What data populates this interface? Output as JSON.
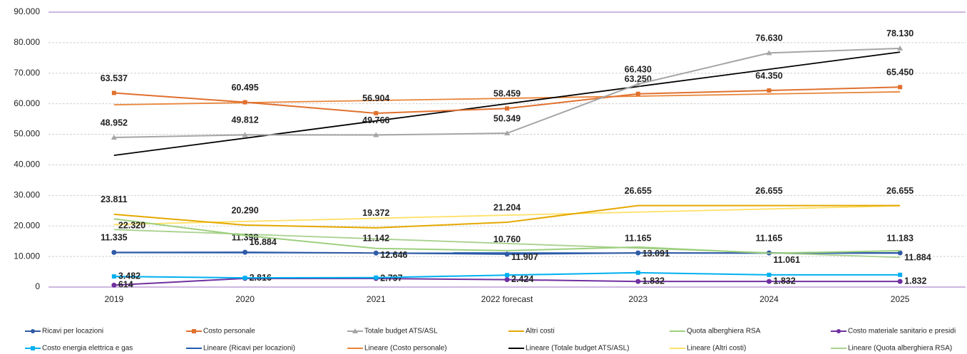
{
  "chart_data": {
    "type": "line",
    "categories": [
      "2019",
      "2020",
      "2021",
      "2022 forecast",
      "2023",
      "2024",
      "2025"
    ],
    "ylim": [
      0,
      90000
    ],
    "yticks": [
      0,
      {
        "value": 10000,
        "label": "10.000"
      },
      {
        "value": 20000,
        "label": "20.000"
      },
      {
        "value": 30000,
        "label": "30.000"
      },
      {
        "value": 40000,
        "label": "40.000"
      },
      {
        "value": 50000,
        "label": "50.000"
      },
      {
        "value": 60000,
        "label": "60.000"
      },
      {
        "value": 70000,
        "label": "70.000"
      },
      {
        "value": 80000,
        "label": "80.000"
      },
      {
        "value": 90000,
        "label": "90.000"
      }
    ],
    "grid": true,
    "series": [
      {
        "name": "Ricavi per locazioni",
        "color": "#2f5aa5",
        "marker": "circle",
        "values": [
          11335,
          11398,
          11142,
          10760,
          11165,
          11165,
          11183
        ],
        "value_labels": [
          "11.335",
          "11.398",
          "11.142",
          "10.760",
          "11.165",
          "11.165",
          "11.183"
        ]
      },
      {
        "name": "Costo personale",
        "color": "#e0702d",
        "marker": "square",
        "values": [
          63537,
          60495,
          56904,
          58459,
          63250,
          64350,
          65450
        ],
        "value_labels": [
          "63.537",
          "60.495",
          "56.904",
          "58.459",
          "63.250",
          "64.350",
          "65.450"
        ]
      },
      {
        "name": "Totale budget ATS/ASL",
        "color": "#a5a5a5",
        "label_color": "#111111",
        "marker": "triangle",
        "values": [
          48952,
          49812,
          49766,
          50349,
          66430,
          76630,
          78130
        ],
        "value_labels": [
          "48.952",
          "49.812",
          "49.766",
          "50.349",
          "66.430",
          "76.630",
          "78.130"
        ]
      },
      {
        "name": "Altri costi",
        "color": "#e5a800",
        "label_color": "#c99400",
        "marker": "none",
        "values": [
          23811,
          20290,
          19372,
          21204,
          26655,
          26655,
          26655
        ],
        "value_labels": [
          "23.811",
          "20.290",
          "19.372",
          "21.204",
          "26.655",
          "26.655",
          "26.655"
        ]
      },
      {
        "name": "Quota alberghiera RSA",
        "color": "#9dcf7e",
        "label_color": "#5f9e3a",
        "marker": "none",
        "values": [
          22320,
          16884,
          12646,
          11907,
          13091,
          11061,
          11884
        ],
        "value_labels": [
          "22.320",
          "16.884",
          "12.646",
          "11.907",
          "13.091",
          "11.061",
          "11.884"
        ]
      },
      {
        "name": "Costo materiale sanitario e presidi",
        "color": "#7030a0",
        "marker": "circle",
        "values": [
          614,
          2816,
          2797,
          2424,
          1832,
          1832,
          1832
        ],
        "value_labels": [
          "614",
          "2.816",
          "2.797",
          "2.424",
          "1.832",
          "1.832",
          "1.832"
        ]
      },
      {
        "name": "Costo energia elettrica e gas",
        "color": "#00b0f0",
        "marker": "square",
        "values": [
          3482,
          3000,
          3100,
          3900,
          4700,
          4000,
          4000
        ],
        "value_labels": [
          "3.482",
          null,
          null,
          null,
          null,
          null,
          null
        ]
      }
    ],
    "trendlines": [
      {
        "name": "Lineare (Ricavi per locazioni)",
        "series": 0,
        "color": "#1f5bb0"
      },
      {
        "name": "Lineare (Costo personale)",
        "series": 1,
        "color": "#e8853a"
      },
      {
        "name": "Lineare (Totale budget ATS/ASL)",
        "series": 2,
        "color": "#000000"
      },
      {
        "name": "Lineare (Altri costi)",
        "series": 3,
        "color": "#ffe066"
      },
      {
        "name": "Lineare (Quota alberghiera RSA)",
        "series": 4,
        "color": "#a9d18e"
      }
    ]
  }
}
